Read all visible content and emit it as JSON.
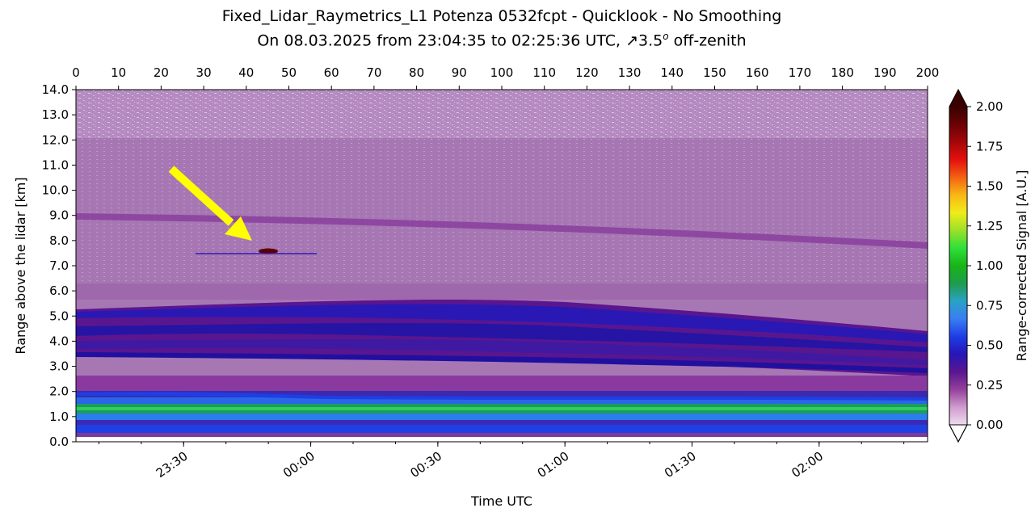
{
  "chart_data": {
    "type": "heatmap",
    "title": "Fixed_Lidar_Raymetrics_L1 Potenza 0532fcpt - Quicklook - No Smoothing",
    "subtitle": "On 08.03.2025 from 23:04:35 to 02:25:36 UTC, ↗3.5° off-zenith",
    "subtitle_parts": {
      "prefix": "On 08.03.2025 from 23:04:35 to 02:25:36 UTC, ",
      "arrow": "↗",
      "angle": "3.5",
      "degree": "o",
      "suffix": " off-zenith"
    },
    "xlabel": "Time UTC",
    "ylabel": "Range above the lidar [km]",
    "time_range": [
      "23:04:35",
      "02:25:36"
    ],
    "x_ticks": [
      "23:30",
      "00:00",
      "00:30",
      "01:00",
      "01:30",
      "02:00"
    ],
    "x2_ticks": [
      "0",
      "10",
      "20",
      "30",
      "40",
      "50",
      "60",
      "70",
      "80",
      "90",
      "100",
      "110",
      "120",
      "130",
      "140",
      "150",
      "160",
      "170",
      "180",
      "190",
      "200"
    ],
    "x2_range": [
      0,
      200
    ],
    "ylim": [
      0.0,
      14.0
    ],
    "y_ticks": [
      "0.0",
      "1.0",
      "2.0",
      "3.0",
      "4.0",
      "5.0",
      "6.0",
      "7.0",
      "8.0",
      "9.0",
      "10.0",
      "11.0",
      "12.0",
      "13.0",
      "14.0"
    ],
    "colorbar": {
      "label": "Range-corrected Signal [A.U.]",
      "range": [
        0.0,
        2.0
      ],
      "extend": "both",
      "ticks": [
        "0.00",
        "0.25",
        "0.50",
        "0.75",
        "1.00",
        "1.25",
        "1.50",
        "1.75",
        "2.00"
      ],
      "colormap": [
        "#efdcef",
        "#cf9ccf",
        "#94409a",
        "#5a1690",
        "#2616b6",
        "#1e3ee6",
        "#3a7ef2",
        "#29a2c6",
        "#1e9c4c",
        "#19b418",
        "#2ee03a",
        "#9ce02a",
        "#f0ec1a",
        "#f8b814",
        "#f46212",
        "#e4100e",
        "#a4060a",
        "#6a0204",
        "#3a0000"
      ]
    },
    "features": [
      {
        "kind": "layer",
        "range_km": [
          0.4,
          0.95
        ],
        "signal": 0.6
      },
      {
        "kind": "layer",
        "range_km": [
          1.1,
          1.6
        ],
        "signal": 1.0
      },
      {
        "kind": "layer",
        "range_km": [
          1.6,
          2.1
        ],
        "signal": 0.65
      },
      {
        "kind": "layer",
        "range_km": [
          3.3,
          5.4
        ],
        "signal": 0.45
      },
      {
        "kind": "cloud",
        "time": "23:45",
        "range_km": 7.5,
        "signal": 2.0
      },
      {
        "kind": "layer",
        "range_km_start": 9.0,
        "range_km_end": 7.9,
        "signal": 0.3
      }
    ],
    "annotation": {
      "kind": "arrow",
      "color": "#ffff00",
      "target": "cloud at ~7.6 km"
    }
  }
}
